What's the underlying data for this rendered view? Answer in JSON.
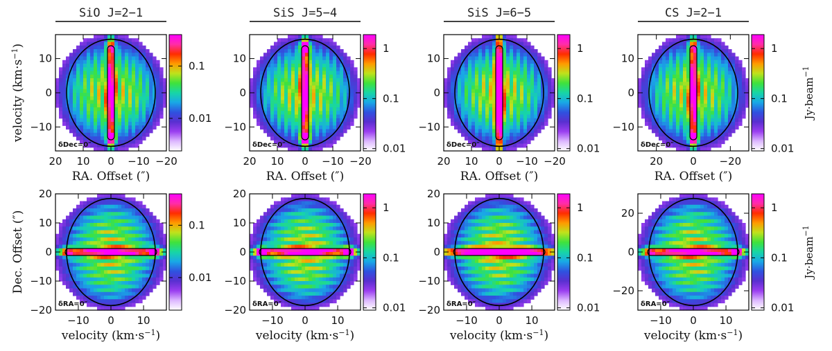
{
  "chart_data": {
    "type": "heatmap",
    "colorbar_unit": "Jy·beam",
    "colorbar_exponent": "−1",
    "colormap": [
      "#ffffff",
      "#ddb8ff",
      "#9a3ef0",
      "#5a2fd0",
      "#2f52e0",
      "#19a8e6",
      "#17d6a6",
      "#3fe23c",
      "#bfe21c",
      "#ff9a00",
      "#ff2d00",
      "#ff2da8",
      "#ff00ff"
    ],
    "contour_color": "#000000",
    "rows": [
      {
        "xlabel": "RA. Offset (″)",
        "ylabel": "velocity (km·s",
        "ylabel_sup": "−1",
        "ylabel_tail": ")",
        "annotation": "δDec=0″",
        "panels": [
          {
            "title": "SiO J=2−1",
            "xlim": [
              20,
              -20
            ],
            "ylim": [
              -17,
              17
            ],
            "xticks": [
              "20",
              "10",
              "0",
              "−10",
              "−20"
            ],
            "xtick_values": [
              20,
              10,
              0,
              -10,
              -20
            ],
            "yticks": [
              "10",
              "0",
              "−10"
            ],
            "ytick_values": [
              10,
              0,
              -10
            ],
            "cbar_ticks": [
              "0.1",
              "0.01"
            ],
            "cbar_tick_levels": [
              0.73,
              0.28
            ]
          },
          {
            "title": "SiS J=5−4",
            "xlim": [
              20,
              -20
            ],
            "ylim": [
              -17,
              17
            ],
            "xticks": [
              "20",
              "10",
              "0",
              "−10",
              "−20"
            ],
            "xtick_values": [
              20,
              10,
              0,
              -10,
              -20
            ],
            "yticks": [
              "10",
              "0",
              "−10"
            ],
            "ytick_values": [
              10,
              0,
              -10
            ],
            "cbar_ticks": [
              "1",
              "0.1",
              "0.01"
            ],
            "cbar_tick_levels": [
              0.88,
              0.45,
              0.02
            ]
          },
          {
            "title": "SiS J=6−5",
            "xlim": [
              20,
              -20
            ],
            "ylim": [
              -17,
              17
            ],
            "xticks": [
              "20",
              "10",
              "0",
              "−10",
              "−20"
            ],
            "xtick_values": [
              20,
              10,
              0,
              -10,
              -20
            ],
            "yticks": [
              "10",
              "0",
              "−10"
            ],
            "ytick_values": [
              10,
              0,
              -10
            ],
            "cbar_ticks": [
              "1",
              "0.1",
              "0.01"
            ],
            "cbar_tick_levels": [
              0.88,
              0.45,
              0.02
            ]
          },
          {
            "title": "CS J=2−1",
            "xlim": [
              30,
              -30
            ],
            "ylim": [
              -17,
              17
            ],
            "xticks": [
              "20",
              "0",
              "−20"
            ],
            "xtick_values": [
              20,
              0,
              -20
            ],
            "yticks": [
              "10",
              "0",
              "−10"
            ],
            "ytick_values": [
              10,
              0,
              -10
            ],
            "cbar_ticks": [
              "1",
              "0.1",
              "0.01"
            ],
            "cbar_tick_levels": [
              0.88,
              0.45,
              0.02
            ]
          }
        ]
      },
      {
        "xlabel": "velocity (km·s",
        "xlabel_sup": "−1",
        "xlabel_tail": ")",
        "ylabel": "Dec. Offset (″)",
        "annotation": "δRA=0″",
        "panels": [
          {
            "xlim": [
              -17,
              17
            ],
            "ylim": [
              -20,
              20
            ],
            "xticks": [
              "−10",
              "0",
              "10"
            ],
            "xtick_values": [
              -10,
              0,
              10
            ],
            "yticks": [
              "20",
              "10",
              "0",
              "−10",
              "−20"
            ],
            "ytick_values": [
              20,
              10,
              0,
              -10,
              -20
            ],
            "cbar_ticks": [
              "0.1",
              "0.01"
            ],
            "cbar_tick_levels": [
              0.73,
              0.28
            ]
          },
          {
            "xlim": [
              -17,
              17
            ],
            "ylim": [
              -20,
              20
            ],
            "xticks": [
              "−10",
              "0",
              "10"
            ],
            "xtick_values": [
              -10,
              0,
              10
            ],
            "yticks": [
              "20",
              "10",
              "0",
              "−10",
              "−20"
            ],
            "ytick_values": [
              20,
              10,
              0,
              -10,
              -20
            ],
            "cbar_ticks": [
              "1",
              "0.1",
              "0.01"
            ],
            "cbar_tick_levels": [
              0.88,
              0.45,
              0.02
            ]
          },
          {
            "xlim": [
              -17,
              17
            ],
            "ylim": [
              -20,
              20
            ],
            "xticks": [
              "−10",
              "0",
              "10"
            ],
            "xtick_values": [
              -10,
              0,
              10
            ],
            "yticks": [
              "20",
              "10",
              "0",
              "−10",
              "−20"
            ],
            "ytick_values": [
              20,
              10,
              0,
              -10,
              -20
            ],
            "cbar_ticks": [
              "1",
              "0.1",
              "0.01"
            ],
            "cbar_tick_levels": [
              0.88,
              0.45,
              0.02
            ]
          },
          {
            "xlim": [
              -17,
              17
            ],
            "ylim": [
              -30,
              30
            ],
            "xticks": [
              "−10",
              "0",
              "10"
            ],
            "xtick_values": [
              -10,
              0,
              10
            ],
            "yticks": [
              "20",
              "0",
              "−20"
            ],
            "ytick_values": [
              20,
              0,
              -20
            ],
            "cbar_ticks": [
              "1",
              "0.1",
              "0.01"
            ],
            "cbar_tick_levels": [
              0.88,
              0.45,
              0.02
            ]
          }
        ]
      }
    ]
  }
}
